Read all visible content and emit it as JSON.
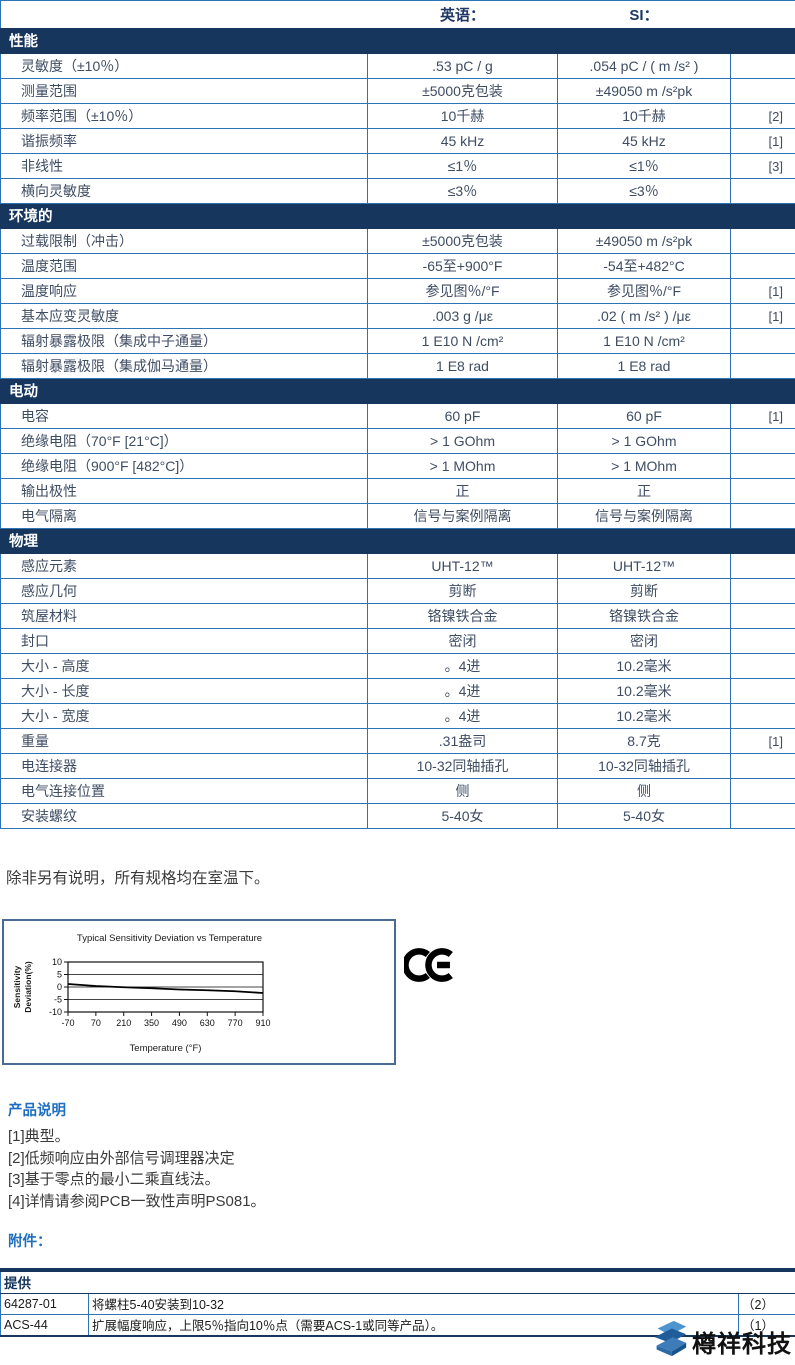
{
  "header": {
    "col_english": "英语：",
    "col_si": "SI："
  },
  "spec_table": {
    "sections": [
      {
        "title": "性能",
        "rows": [
          {
            "label": "灵敏度（±10％）",
            "english": ".53 pC / g",
            "si": ".054 pC / ( m /s² )",
            "note": ""
          },
          {
            "label": "测量范围",
            "english": "±5000克包装",
            "si": "±49050 m /s²pk",
            "note": ""
          },
          {
            "label": "频率范围（±10％）",
            "english": "10千赫",
            "si": "10千赫",
            "note": "[2]"
          },
          {
            "label": "谐振频率",
            "english": "45 kHz",
            "si": "45 kHz",
            "note": "[1]"
          },
          {
            "label": "非线性",
            "english": "≤1％",
            "si": "≤1％",
            "note": "[3]"
          },
          {
            "label": "横向灵敏度",
            "english": "≤3％",
            "si": "≤3％",
            "note": ""
          }
        ]
      },
      {
        "title": "环境的",
        "rows": [
          {
            "label": "过载限制（冲击）",
            "english": "±5000克包装",
            "si": "±49050 m /s²pk",
            "note": ""
          },
          {
            "label": "温度范围",
            "english": "-65至+900°F",
            "si": "-54至+482°C",
            "note": ""
          },
          {
            "label": "温度响应",
            "english": "参见图％/°F",
            "si": "参见图％/°F",
            "note": "[1]"
          },
          {
            "label": "基本应变灵敏度",
            "english": ".003 g /με",
            "si": ".02 ( m /s² ) /με",
            "note": "[1]"
          },
          {
            "label": "辐射暴露极限（集成中子通量）",
            "english": "1 E10 N /cm²",
            "si": "1 E10 N /cm²",
            "note": ""
          },
          {
            "label": "辐射暴露极限（集成伽马通量）",
            "english": "1 E8 rad",
            "si": "1 E8 rad",
            "note": ""
          }
        ]
      },
      {
        "title": "电动",
        "rows": [
          {
            "label": "电容",
            "english": "60 pF",
            "si": "60 pF",
            "note": "[1]"
          },
          {
            "label": "绝缘电阻（70°F [21°C]）",
            "english": "> 1 GOhm",
            "si": "> 1 GOhm",
            "note": ""
          },
          {
            "label": "绝缘电阻（900°F [482°C]）",
            "english": "> 1 MOhm",
            "si": "> 1 MOhm",
            "note": ""
          },
          {
            "label": "输出极性",
            "english": "正",
            "si": "正",
            "note": ""
          },
          {
            "label": "电气隔离",
            "english": "信号与案例隔离",
            "si": "信号与案例隔离",
            "note": ""
          }
        ]
      },
      {
        "title": "物理",
        "rows": [
          {
            "label": "感应元素",
            "english": "UHT-12™",
            "si": "UHT-12™",
            "note": ""
          },
          {
            "label": "感应几何",
            "english": "剪断",
            "si": "剪断",
            "note": ""
          },
          {
            "label": "筑屋材料",
            "english": "铬镍铁合金",
            "si": "铬镍铁合金",
            "note": ""
          },
          {
            "label": "封口",
            "english": "密闭",
            "si": "密闭",
            "note": ""
          },
          {
            "label": "大小 - 高度",
            "english": "。4进",
            "si": "10.2毫米",
            "note": ""
          },
          {
            "label": "大小 - 长度",
            "english": "。4进",
            "si": "10.2毫米",
            "note": ""
          },
          {
            "label": "大小 - 宽度",
            "english": "。4进",
            "si": "10.2毫米",
            "note": ""
          },
          {
            "label": "重量",
            "english": ".31盎司",
            "si": "8.7克",
            "note": "[1]"
          },
          {
            "label": "电连接器",
            "english": "10-32同轴插孔",
            "si": "10-32同轴插孔",
            "note": ""
          },
          {
            "label": "电气连接位置",
            "english": "侧",
            "si": "侧",
            "note": ""
          },
          {
            "label": "安装螺纹",
            "english": "5-40女",
            "si": "5-40女",
            "note": ""
          }
        ]
      }
    ]
  },
  "room_temp_note": "除非另有说明，所有规格均在室温下。",
  "chart_data": {
    "type": "line",
    "title": "Typical Sensitivity Deviation vs Temperature",
    "xlabel": "Temperature (°F)",
    "ylabel": "Sensitivity Deviation(%)",
    "x": [
      -70,
      70,
      210,
      350,
      490,
      630,
      770,
      910
    ],
    "y": [
      1.2,
      0.4,
      -0.1,
      -0.5,
      -1.0,
      -1.3,
      -1.7,
      -2.4
    ],
    "yticks": [
      10,
      5,
      0,
      -5,
      -10
    ],
    "ylim": [
      -10,
      10
    ],
    "xlim": [
      -70,
      910
    ],
    "grid": true,
    "legend": false,
    "line_color": "#000000"
  },
  "ce_mark_label": "CE",
  "product_notes": {
    "heading": "产品说明",
    "items": [
      "[1]典型。",
      "[2]低频响应由外部信号调理器决定",
      "[3]基于零点的最小二乘直线法。",
      "[4]详情请参阅PCB一致性声明PS081。"
    ]
  },
  "attachments": {
    "heading": "附件：",
    "table": {
      "header": "提供",
      "rows": [
        {
          "part": "64287-01",
          "desc": "将螺柱5-40安装到10-32",
          "qty": "（2）"
        },
        {
          "part": "ACS-44",
          "desc": "扩展幅度响应，上限5％指向10％点（需要ACS-1或同等产品）。",
          "qty": "（1）"
        }
      ]
    }
  },
  "footer_logo": {
    "text": "樽祥科技"
  },
  "colors": {
    "navy": "#17365D",
    "border_blue": "#2E74B5",
    "heading_blue": "#1F6FC0"
  }
}
